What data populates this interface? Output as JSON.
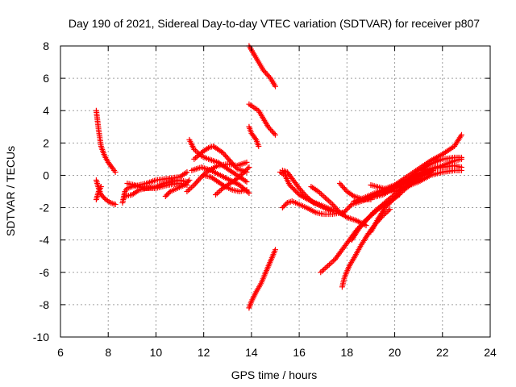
{
  "chart_data": {
    "type": "scatter",
    "title": "Day 190 of 2021, Sidereal Day-to-day VTEC variation (SDTVAR) for receiver p807",
    "xlabel": "GPS time / hours",
    "ylabel": "SDTVAR / TECUs",
    "xlim": [
      6,
      24
    ],
    "ylim": [
      -10,
      8
    ],
    "xticks": [
      6,
      8,
      10,
      12,
      14,
      16,
      18,
      20,
      22,
      24
    ],
    "yticks": [
      -10,
      -8,
      -6,
      -4,
      -2,
      0,
      2,
      4,
      6,
      8
    ],
    "xtick_labels": [
      "6",
      "8",
      "10",
      "12",
      "14",
      "16",
      "18",
      "20",
      "22",
      "24"
    ],
    "ytick_labels": [
      "-10",
      "-8",
      "-6",
      "-4",
      "-2",
      "0",
      "2",
      "4",
      "6",
      "8"
    ],
    "grid": true,
    "marker": "plus",
    "color": "#ff0000",
    "tracks": [
      [
        [
          7.5,
          4.0
        ],
        [
          7.6,
          2.8
        ],
        [
          7.7,
          1.8
        ],
        [
          7.85,
          1.2
        ],
        [
          8.0,
          0.8
        ],
        [
          8.2,
          0.4
        ],
        [
          8.3,
          0.2
        ]
      ],
      [
        [
          7.5,
          -0.3
        ],
        [
          7.6,
          -0.8
        ],
        [
          7.7,
          -1.2
        ],
        [
          7.9,
          -1.5
        ],
        [
          8.1,
          -1.7
        ],
        [
          8.3,
          -1.8
        ]
      ],
      [
        [
          7.5,
          -1.5
        ],
        [
          7.6,
          -1.0
        ],
        [
          7.7,
          -0.7
        ]
      ],
      [
        [
          8.6,
          -1.7
        ],
        [
          8.7,
          -1.0
        ],
        [
          8.8,
          -0.8
        ],
        [
          9.0,
          -0.7
        ],
        [
          9.3,
          -0.6
        ],
        [
          9.6,
          -0.5
        ],
        [
          10.0,
          -0.3
        ],
        [
          10.5,
          -0.2
        ],
        [
          11.0,
          -0.1
        ],
        [
          11.3,
          0.2
        ]
      ],
      [
        [
          8.7,
          -1.3
        ],
        [
          9.0,
          -1.2
        ],
        [
          9.3,
          -0.9
        ],
        [
          9.6,
          -0.8
        ],
        [
          10.0,
          -0.7
        ],
        [
          10.3,
          -0.5
        ],
        [
          10.6,
          -0.4
        ],
        [
          11.0,
          -0.3
        ],
        [
          11.3,
          -0.4
        ]
      ],
      [
        [
          8.8,
          -0.5
        ],
        [
          9.1,
          -0.6
        ],
        [
          9.5,
          -0.8
        ],
        [
          10.0,
          -0.8
        ],
        [
          10.5,
          -0.6
        ],
        [
          11.0,
          -0.5
        ],
        [
          11.3,
          -0.6
        ]
      ],
      [
        [
          10.4,
          -1.3
        ],
        [
          10.6,
          -1.0
        ],
        [
          10.9,
          -0.8
        ],
        [
          11.2,
          -0.6
        ],
        [
          11.4,
          -0.3
        ]
      ],
      [
        [
          11.3,
          -1.0
        ],
        [
          11.6,
          -0.6
        ],
        [
          11.9,
          -0.1
        ],
        [
          12.2,
          0.3
        ],
        [
          12.6,
          0.6
        ],
        [
          13.0,
          0.7
        ],
        [
          13.4,
          0.6
        ],
        [
          13.8,
          0.8
        ]
      ],
      [
        [
          11.4,
          2.2
        ],
        [
          11.6,
          1.6
        ],
        [
          11.9,
          1.2
        ],
        [
          12.2,
          1.0
        ],
        [
          12.6,
          0.8
        ],
        [
          13.0,
          0.4
        ],
        [
          13.4,
          0.0
        ],
        [
          13.8,
          -0.4
        ]
      ],
      [
        [
          11.6,
          1.0
        ],
        [
          11.9,
          1.4
        ],
        [
          12.2,
          1.7
        ],
        [
          12.4,
          1.8
        ],
        [
          12.8,
          1.4
        ],
        [
          13.1,
          0.9
        ],
        [
          13.4,
          0.4
        ],
        [
          13.8,
          0.2
        ]
      ],
      [
        [
          11.5,
          0.3
        ],
        [
          11.9,
          0.5
        ],
        [
          12.3,
          0.3
        ],
        [
          12.7,
          0.0
        ],
        [
          13.1,
          -0.3
        ],
        [
          13.5,
          -0.6
        ],
        [
          13.9,
          -1.1
        ]
      ],
      [
        [
          12.0,
          0.0
        ],
        [
          12.3,
          -0.1
        ],
        [
          12.6,
          -0.4
        ],
        [
          12.9,
          -0.7
        ],
        [
          13.2,
          -0.9
        ],
        [
          13.5,
          -1.0
        ],
        [
          13.8,
          -0.9
        ]
      ],
      [
        [
          12.5,
          -1.2
        ],
        [
          12.8,
          -0.8
        ],
        [
          13.1,
          -0.5
        ],
        [
          13.4,
          -0.2
        ],
        [
          13.7,
          0.2
        ],
        [
          13.9,
          0.5
        ]
      ],
      [
        [
          13.9,
          8.0
        ],
        [
          14.1,
          7.5
        ],
        [
          14.3,
          7.0
        ],
        [
          14.5,
          6.5
        ],
        [
          14.8,
          6.0
        ],
        [
          15.0,
          5.5
        ]
      ],
      [
        [
          13.9,
          4.4
        ],
        [
          14.1,
          4.2
        ],
        [
          14.3,
          4.0
        ],
        [
          14.5,
          3.5
        ],
        [
          14.7,
          3.0
        ],
        [
          15.0,
          2.5
        ]
      ],
      [
        [
          13.9,
          3.0
        ],
        [
          14.0,
          2.6
        ],
        [
          14.2,
          2.2
        ],
        [
          14.3,
          1.8
        ]
      ],
      [
        [
          13.9,
          -8.2
        ],
        [
          14.0,
          -7.8
        ],
        [
          14.2,
          -7.2
        ],
        [
          14.4,
          -6.7
        ],
        [
          14.6,
          -6.0
        ],
        [
          14.8,
          -5.3
        ],
        [
          15.0,
          -4.6
        ]
      ],
      [
        [
          15.2,
          0.2
        ],
        [
          15.4,
          0.0
        ],
        [
          15.6,
          -0.6
        ],
        [
          16.0,
          -1.2
        ],
        [
          16.5,
          -1.6
        ],
        [
          17.0,
          -1.9
        ],
        [
          17.5,
          -2.2
        ],
        [
          17.8,
          -2.4
        ]
      ],
      [
        [
          15.3,
          -2.0
        ],
        [
          15.5,
          -1.7
        ],
        [
          15.7,
          -1.6
        ],
        [
          16.0,
          -1.8
        ],
        [
          16.3,
          -2.0
        ],
        [
          16.7,
          -2.3
        ],
        [
          17.0,
          -2.4
        ],
        [
          17.4,
          -2.4
        ],
        [
          17.8,
          -2.3
        ]
      ],
      [
        [
          15.3,
          0.3
        ],
        [
          15.5,
          0.2
        ],
        [
          15.7,
          -0.2
        ],
        [
          16.0,
          -0.8
        ],
        [
          16.3,
          -1.3
        ],
        [
          16.6,
          -1.7
        ],
        [
          16.9,
          -1.9
        ],
        [
          17.3,
          -2.2
        ]
      ],
      [
        [
          16.5,
          -0.7
        ],
        [
          16.8,
          -1.0
        ],
        [
          17.1,
          -1.4
        ],
        [
          17.4,
          -1.8
        ],
        [
          17.7,
          -2.3
        ],
        [
          18.0,
          -2.6
        ],
        [
          18.4,
          -2.8
        ],
        [
          18.8,
          -3.1
        ]
      ],
      [
        [
          17.7,
          -0.5
        ],
        [
          18.0,
          -1.0
        ],
        [
          18.3,
          -1.3
        ],
        [
          18.7,
          -1.5
        ],
        [
          19.0,
          -1.5
        ]
      ],
      [
        [
          17.8,
          -2.4
        ],
        [
          18.2,
          -1.8
        ],
        [
          18.6,
          -1.6
        ],
        [
          19.0,
          -1.4
        ],
        [
          19.5,
          -1.2
        ],
        [
          20.0,
          -0.8
        ],
        [
          20.5,
          -0.4
        ],
        [
          21.0,
          0.0
        ],
        [
          21.5,
          0.4
        ],
        [
          22.0,
          0.6
        ],
        [
          22.5,
          0.9
        ],
        [
          22.8,
          1.0
        ]
      ],
      [
        [
          18.3,
          -1.6
        ],
        [
          18.7,
          -1.4
        ],
        [
          19.0,
          -1.2
        ],
        [
          19.5,
          -0.9
        ],
        [
          20.0,
          -0.6
        ],
        [
          20.5,
          -0.3
        ],
        [
          21.0,
          0.1
        ],
        [
          21.5,
          0.4
        ],
        [
          22.0,
          0.5
        ],
        [
          22.5,
          0.6
        ],
        [
          22.8,
          0.5
        ]
      ],
      [
        [
          18.9,
          -1.4
        ],
        [
          19.5,
          -1.0
        ],
        [
          20.0,
          -0.7
        ],
        [
          20.5,
          -0.4
        ],
        [
          21.0,
          0.3
        ],
        [
          21.5,
          0.7
        ],
        [
          22.0,
          1.0
        ],
        [
          22.5,
          1.1
        ],
        [
          22.8,
          1.1
        ]
      ],
      [
        [
          19.0,
          -0.6
        ],
        [
          19.5,
          -0.8
        ],
        [
          20.0,
          -1.0
        ],
        [
          20.5,
          -0.7
        ],
        [
          21.0,
          -0.4
        ],
        [
          21.5,
          0.0
        ],
        [
          22.0,
          0.2
        ],
        [
          22.5,
          0.3
        ],
        [
          22.8,
          0.3
        ]
      ],
      [
        [
          19.5,
          -0.9
        ],
        [
          20.0,
          -0.6
        ],
        [
          20.5,
          -0.1
        ],
        [
          21.0,
          0.4
        ],
        [
          21.5,
          0.9
        ],
        [
          22.0,
          1.3
        ],
        [
          22.5,
          1.8
        ],
        [
          22.8,
          2.5
        ]
      ],
      [
        [
          16.9,
          -6.0
        ],
        [
          17.2,
          -5.6
        ],
        [
          17.5,
          -5.2
        ],
        [
          17.8,
          -4.6
        ],
        [
          18.1,
          -4.0
        ],
        [
          18.4,
          -3.4
        ],
        [
          18.7,
          -2.9
        ],
        [
          19.0,
          -2.5
        ],
        [
          19.3,
          -2.1
        ],
        [
          19.6,
          -1.8
        ],
        [
          19.9,
          -1.5
        ],
        [
          20.2,
          -1.2
        ]
      ],
      [
        [
          17.8,
          -6.9
        ],
        [
          17.9,
          -6.3
        ],
        [
          18.1,
          -5.6
        ],
        [
          18.3,
          -5.1
        ],
        [
          18.6,
          -4.3
        ],
        [
          18.9,
          -3.6
        ],
        [
          19.2,
          -3.0
        ],
        [
          19.5,
          -2.5
        ],
        [
          19.8,
          -2.1
        ]
      ],
      [
        [
          18.2,
          -4.0
        ],
        [
          18.5,
          -3.3
        ],
        [
          18.8,
          -2.8
        ],
        [
          19.1,
          -2.3
        ],
        [
          19.5,
          -1.8
        ],
        [
          19.9,
          -1.3
        ],
        [
          20.3,
          -0.8
        ],
        [
          20.6,
          -0.5
        ],
        [
          21.0,
          -0.2
        ]
      ],
      [
        [
          19.0,
          -3.5
        ],
        [
          19.3,
          -2.7
        ],
        [
          19.6,
          -2.0
        ],
        [
          20.0,
          -1.4
        ],
        [
          20.4,
          -0.9
        ],
        [
          20.8,
          -0.4
        ],
        [
          21.2,
          0.0
        ],
        [
          21.6,
          0.3
        ]
      ]
    ]
  }
}
